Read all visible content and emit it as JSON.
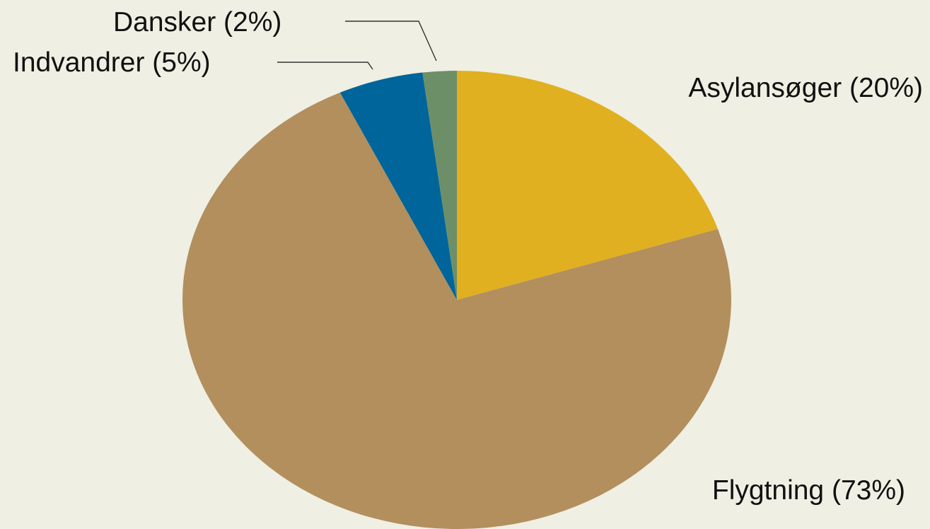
{
  "chart_data": {
    "type": "pie",
    "title": "",
    "start": "12 o'clock, clockwise",
    "slices": [
      {
        "label": "Asylansøger (20%)",
        "name": "Asylansøger",
        "value": 20,
        "color": "#e1b021"
      },
      {
        "label": "Flygtning (73%)",
        "name": "Flygtning",
        "value": 73,
        "color": "#b38f5e"
      },
      {
        "label": "Indvandrer (5%)",
        "name": "Indvandrer",
        "value": 5,
        "color": "#00659a"
      },
      {
        "label": "Dansker (2%)",
        "name": "Dansker",
        "value": 2,
        "color": "#6d8f68"
      }
    ]
  }
}
